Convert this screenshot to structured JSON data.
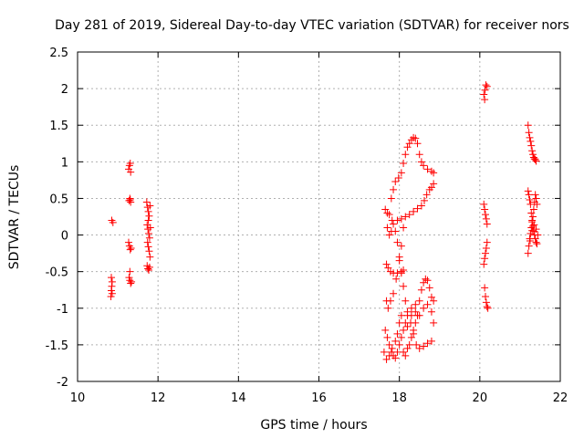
{
  "chart_data": {
    "type": "scatter",
    "title": "Day 281 of 2019, Sidereal Day-to-day VTEC variation (SDTVAR) for receiver nors",
    "xlabel": "GPS time / hours",
    "ylabel": "SDTVAR / TECUs",
    "xlim": [
      10,
      22
    ],
    "ylim": [
      -2,
      2.5
    ],
    "xticks": [
      10,
      12,
      14,
      16,
      18,
      20,
      22
    ],
    "xtick_labels": [
      "10",
      "12",
      "14",
      "16",
      "18",
      "20",
      "22"
    ],
    "yticks": [
      -2,
      -1.5,
      -1,
      -0.5,
      0,
      0.5,
      1,
      1.5,
      2,
      2.5
    ],
    "ytick_labels": [
      "-2",
      "-1.5",
      "-1",
      "-0.5",
      "0",
      "0.5",
      "1",
      "1.5",
      "2",
      "2.5"
    ],
    "grid": true,
    "marker": "plus",
    "color": "#ff0000",
    "series": [
      {
        "name": "SDTVAR",
        "points": [
          [
            10.85,
            0.2
          ],
          [
            10.88,
            0.17
          ],
          [
            10.84,
            -0.58
          ],
          [
            10.86,
            -0.64
          ],
          [
            10.85,
            -0.7
          ],
          [
            10.84,
            -0.76
          ],
          [
            10.86,
            -0.8
          ],
          [
            10.83,
            -0.84
          ],
          [
            11.27,
            0.9
          ],
          [
            11.29,
            0.95
          ],
          [
            11.31,
            0.98
          ],
          [
            11.32,
            0.86
          ],
          [
            11.28,
            0.47
          ],
          [
            11.3,
            0.5
          ],
          [
            11.32,
            0.45
          ],
          [
            11.31,
            0.48
          ],
          [
            11.27,
            -0.1
          ],
          [
            11.29,
            -0.15
          ],
          [
            11.31,
            -0.2
          ],
          [
            11.33,
            -0.18
          ],
          [
            11.3,
            -0.5
          ],
          [
            11.28,
            -0.58
          ],
          [
            11.3,
            -0.62
          ],
          [
            11.32,
            -0.66
          ],
          [
            11.34,
            -0.64
          ],
          [
            11.72,
            0.45
          ],
          [
            11.74,
            0.38
          ],
          [
            11.76,
            0.32
          ],
          [
            11.78,
            0.26
          ],
          [
            11.8,
            0.4
          ],
          [
            11.76,
            0.2
          ],
          [
            11.73,
            0.14
          ],
          [
            11.75,
            0.08
          ],
          [
            11.77,
            0.02
          ],
          [
            11.79,
            -0.04
          ],
          [
            11.74,
            -0.1
          ],
          [
            11.76,
            -0.16
          ],
          [
            11.78,
            -0.22
          ],
          [
            11.8,
            -0.3
          ],
          [
            11.73,
            -0.42
          ],
          [
            11.75,
            -0.46
          ],
          [
            11.77,
            -0.48
          ],
          [
            11.79,
            -0.44
          ],
          [
            11.81,
            0.1
          ],
          [
            17.65,
            0.35
          ],
          [
            17.7,
            0.3
          ],
          [
            17.75,
            0.28
          ],
          [
            17.82,
            0.2
          ],
          [
            17.9,
            0.05
          ],
          [
            17.95,
            -0.1
          ],
          [
            18.0,
            -0.3
          ],
          [
            18.05,
            -0.5
          ],
          [
            18.1,
            -0.7
          ],
          [
            18.15,
            -0.9
          ],
          [
            18.2,
            -1.05
          ],
          [
            18.28,
            -1.2
          ],
          [
            18.35,
            -1.35
          ],
          [
            18.42,
            -1.5
          ],
          [
            18.5,
            -1.55
          ],
          [
            18.6,
            -1.52
          ],
          [
            18.7,
            -1.48
          ],
          [
            18.8,
            -1.45
          ],
          [
            17.8,
            0.5
          ],
          [
            17.85,
            0.62
          ],
          [
            17.9,
            0.73
          ],
          [
            17.98,
            0.78
          ],
          [
            18.05,
            0.85
          ],
          [
            18.1,
            0.98
          ],
          [
            18.15,
            1.1
          ],
          [
            18.2,
            1.2
          ],
          [
            18.25,
            1.25
          ],
          [
            18.3,
            1.3
          ],
          [
            18.35,
            1.33
          ],
          [
            18.4,
            1.32
          ],
          [
            18.45,
            1.25
          ],
          [
            18.5,
            1.1
          ],
          [
            18.55,
            1.0
          ],
          [
            18.6,
            0.95
          ],
          [
            18.7,
            0.9
          ],
          [
            18.8,
            0.87
          ],
          [
            18.85,
            0.85
          ],
          [
            17.68,
            -0.4
          ],
          [
            17.72,
            -0.45
          ],
          [
            17.78,
            -0.5
          ],
          [
            17.85,
            -0.52
          ],
          [
            17.95,
            -0.52
          ],
          [
            18.05,
            -0.52
          ],
          [
            18.1,
            -0.48
          ],
          [
            17.7,
            0.1
          ],
          [
            17.75,
            0.0
          ],
          [
            17.8,
            0.05
          ],
          [
            17.85,
            0.15
          ],
          [
            17.95,
            0.2
          ],
          [
            18.05,
            0.22
          ],
          [
            18.15,
            0.25
          ],
          [
            18.25,
            0.28
          ],
          [
            18.35,
            0.32
          ],
          [
            18.45,
            0.36
          ],
          [
            18.55,
            0.4
          ],
          [
            18.62,
            0.47
          ],
          [
            18.68,
            0.55
          ],
          [
            18.75,
            0.62
          ],
          [
            18.8,
            0.65
          ],
          [
            18.85,
            0.7
          ],
          [
            17.68,
            -0.9
          ],
          [
            17.72,
            -1.0
          ],
          [
            17.78,
            -0.9
          ],
          [
            17.85,
            -0.8
          ],
          [
            17.92,
            -0.6
          ],
          [
            18.0,
            -0.35
          ],
          [
            18.05,
            -0.15
          ],
          [
            18.1,
            0.1
          ],
          [
            17.65,
            -1.3
          ],
          [
            17.7,
            -1.4
          ],
          [
            17.75,
            -1.5
          ],
          [
            17.8,
            -1.6
          ],
          [
            17.85,
            -1.65
          ],
          [
            17.9,
            -1.68
          ],
          [
            17.95,
            -1.6
          ],
          [
            18.0,
            -1.5
          ],
          [
            18.05,
            -1.4
          ],
          [
            18.1,
            -1.3
          ],
          [
            18.15,
            -1.2
          ],
          [
            18.2,
            -1.1
          ],
          [
            18.3,
            -1.0
          ],
          [
            18.4,
            -0.95
          ],
          [
            17.62,
            -1.6
          ],
          [
            17.68,
            -1.7
          ],
          [
            17.75,
            -1.65
          ],
          [
            17.82,
            -1.55
          ],
          [
            17.9,
            -1.45
          ],
          [
            17.95,
            -1.35
          ],
          [
            18.0,
            -1.2
          ],
          [
            18.05,
            -1.1
          ],
          [
            18.1,
            -1.6
          ],
          [
            18.15,
            -1.65
          ],
          [
            18.2,
            -1.55
          ],
          [
            18.25,
            -1.5
          ],
          [
            18.3,
            -1.4
          ],
          [
            18.35,
            -1.3
          ],
          [
            18.4,
            -1.2
          ],
          [
            18.45,
            -1.1
          ],
          [
            18.5,
            -0.9
          ],
          [
            18.55,
            -0.75
          ],
          [
            18.6,
            -0.65
          ],
          [
            18.65,
            -0.6
          ],
          [
            18.7,
            -0.62
          ],
          [
            18.75,
            -0.72
          ],
          [
            18.8,
            -0.85
          ],
          [
            18.85,
            -0.9
          ],
          [
            18.2,
            -1.25
          ],
          [
            18.3,
            -1.1
          ],
          [
            18.4,
            -1.05
          ],
          [
            18.5,
            -1.1
          ],
          [
            18.6,
            -1.0
          ],
          [
            18.7,
            -0.95
          ],
          [
            18.8,
            -1.05
          ],
          [
            18.85,
            -1.2
          ],
          [
            20.15,
            2.05
          ],
          [
            20.18,
            2.03
          ],
          [
            20.13,
            1.98
          ],
          [
            20.1,
            1.92
          ],
          [
            20.12,
            1.85
          ],
          [
            20.1,
            0.42
          ],
          [
            20.12,
            0.35
          ],
          [
            20.14,
            0.28
          ],
          [
            20.16,
            0.22
          ],
          [
            20.18,
            0.15
          ],
          [
            20.1,
            -0.4
          ],
          [
            20.12,
            -0.32
          ],
          [
            20.14,
            -0.25
          ],
          [
            20.16,
            -0.18
          ],
          [
            20.18,
            -0.1
          ],
          [
            20.12,
            -0.72
          ],
          [
            20.14,
            -0.84
          ],
          [
            20.16,
            -0.92
          ],
          [
            20.18,
            -0.98
          ],
          [
            20.2,
            -1.0
          ],
          [
            21.2,
            1.5
          ],
          [
            21.22,
            1.4
          ],
          [
            21.24,
            1.33
          ],
          [
            21.26,
            1.28
          ],
          [
            21.28,
            1.22
          ],
          [
            21.3,
            1.15
          ],
          [
            21.32,
            1.1
          ],
          [
            21.34,
            1.06
          ],
          [
            21.36,
            1.04
          ],
          [
            21.38,
            1.03
          ],
          [
            21.4,
            1.01
          ],
          [
            21.2,
            0.6
          ],
          [
            21.22,
            0.55
          ],
          [
            21.24,
            0.48
          ],
          [
            21.26,
            0.42
          ],
          [
            21.28,
            0.3
          ],
          [
            21.3,
            0.2
          ],
          [
            21.32,
            0.12
          ],
          [
            21.34,
            0.05
          ],
          [
            21.36,
            0.0
          ],
          [
            21.38,
            -0.05
          ],
          [
            21.4,
            -0.1
          ],
          [
            21.42,
            -0.12
          ],
          [
            21.2,
            -0.25
          ],
          [
            21.22,
            -0.15
          ],
          [
            21.24,
            -0.05
          ],
          [
            21.26,
            0.02
          ],
          [
            21.28,
            0.1
          ],
          [
            21.3,
            0.18
          ],
          [
            21.32,
            0.25
          ],
          [
            21.34,
            0.35
          ],
          [
            21.36,
            0.45
          ],
          [
            21.38,
            0.55
          ],
          [
            21.4,
            0.5
          ],
          [
            21.42,
            0.42
          ],
          [
            21.25,
            -0.08
          ],
          [
            21.3,
            0.06
          ],
          [
            21.35,
            0.14
          ],
          [
            21.4,
            0.08
          ],
          [
            21.44,
            0.0
          ]
        ]
      }
    ]
  }
}
